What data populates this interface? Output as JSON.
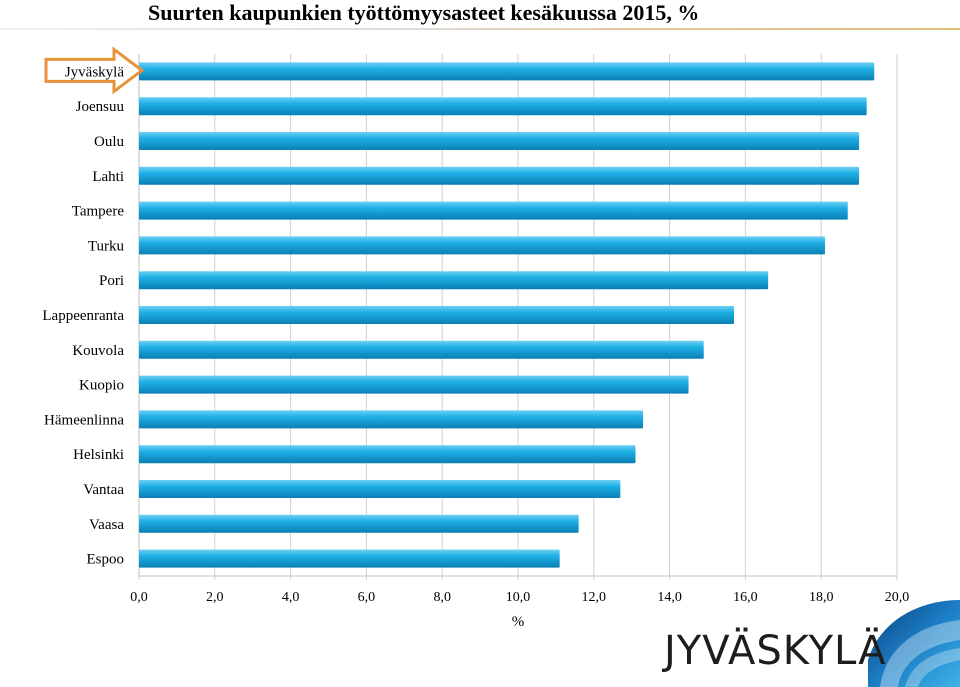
{
  "title": "Suurten kaupunkien työttömyysasteet kesäkuussa 2015, %",
  "logo_text": "JYVÄSKYLÄ",
  "colors": {
    "bar": "#1aa6dc",
    "bar_dark": "#0a78a8",
    "highlight": "#e8923a",
    "grid": "#d0d0d0"
  },
  "chart_data": {
    "type": "bar",
    "orientation": "horizontal",
    "categories": [
      "Jyväskylä",
      "Joensuu",
      "Oulu",
      "Lahti",
      "Tampere",
      "Turku",
      "Pori",
      "Lappeenranta",
      "Kouvola",
      "Kuopio",
      "Hämeenlinna",
      "Helsinki",
      "Vantaa",
      "Vaasa",
      "Espoo"
    ],
    "values": [
      19.4,
      19.2,
      19.0,
      19.0,
      18.7,
      18.1,
      16.6,
      15.7,
      14.9,
      14.5,
      13.3,
      13.1,
      12.7,
      11.6,
      11.1
    ],
    "highlight": "Jyväskylä",
    "xlabel": "%",
    "xlim": [
      0,
      20
    ],
    "xticks": [
      "0,0",
      "2,0",
      "4,0",
      "6,0",
      "8,0",
      "10,0",
      "12,0",
      "14,0",
      "16,0",
      "18,0",
      "20,0"
    ],
    "grid": true
  }
}
